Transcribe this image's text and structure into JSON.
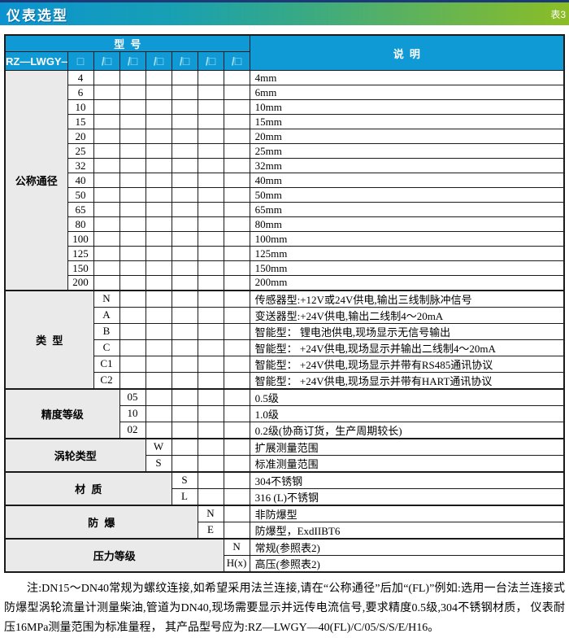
{
  "banner": {
    "title": "仪表选型",
    "badge": "表3"
  },
  "colors": {
    "banner_gradient_left": "#0b93d1",
    "banner_gradient_right": "#8cbd25",
    "topline": "#1c3a77",
    "table_header_blue": "#0f99d5",
    "slot_glyph": "#a8e0f6",
    "label_cell_bg": "#eaeaea",
    "border": "#1a1a1a"
  },
  "table": {
    "header": {
      "model_label": "型  号",
      "desc_label": "说  明",
      "prefix": "RZ—LWGY—",
      "code_slots": [
        "□",
        "/□",
        "/□",
        "/□",
        "/□",
        "/□",
        "/□"
      ]
    },
    "sections": [
      {
        "label": "公称通径",
        "col": 1,
        "rows": [
          {
            "code": "4",
            "desc": "4mm"
          },
          {
            "code": "6",
            "desc": "6mm"
          },
          {
            "code": "10",
            "desc": "10mm"
          },
          {
            "code": "15",
            "desc": "15mm"
          },
          {
            "code": "20",
            "desc": "20mm"
          },
          {
            "code": "25",
            "desc": "25mm"
          },
          {
            "code": "32",
            "desc": "32mm"
          },
          {
            "code": "40",
            "desc": "40mm"
          },
          {
            "code": "50",
            "desc": "50mm"
          },
          {
            "code": "65",
            "desc": "65mm"
          },
          {
            "code": "80",
            "desc": "80mm"
          },
          {
            "code": "100",
            "desc": "100mm"
          },
          {
            "code": "125",
            "desc": "125mm"
          },
          {
            "code": "150",
            "desc": "150mm"
          },
          {
            "code": "200",
            "desc": "200mm"
          }
        ]
      },
      {
        "label": "类  型",
        "col": 2,
        "rows": [
          {
            "code": "N",
            "desc": "传感器型:+12V或24V供电,输出三线制脉冲信号"
          },
          {
            "code": "A",
            "desc": "变送器型:+24V供电,输出二线制4～20mA"
          },
          {
            "code": "B",
            "desc": "智能型： 锂电池供电,现场显示无信号输出"
          },
          {
            "code": "C",
            "desc": "智能型： +24V供电,现场显示并输出二线制4～20mA"
          },
          {
            "code": "C1",
            "desc": "智能型： +24V供电,现场显示并带有RS485通讯协议"
          },
          {
            "code": "C2",
            "desc": "智能型： +24V供电,现场显示并带有HART通讯协议"
          }
        ]
      },
      {
        "label": "精度等级",
        "col": 3,
        "rows": [
          {
            "code": "05",
            "desc": "0.5级"
          },
          {
            "code": "10",
            "desc": "1.0级"
          },
          {
            "code": "02",
            "desc": "0.2级(协商订货，生产周期较长)"
          }
        ]
      },
      {
        "label": "涡轮类型",
        "col": 4,
        "rows": [
          {
            "code": "W",
            "desc": "扩展测量范围"
          },
          {
            "code": "S",
            "desc": "标准测量范围"
          }
        ]
      },
      {
        "label": "材  质",
        "col": 5,
        "rows": [
          {
            "code": "S",
            "desc": "304不锈钢"
          },
          {
            "code": "L",
            "desc": "316 (L)不锈钢"
          }
        ]
      },
      {
        "label": "防  爆",
        "col": 6,
        "rows": [
          {
            "code": "N",
            "desc": "非防爆型"
          },
          {
            "code": "E",
            "desc": "防爆型，ExdIIBT6"
          }
        ]
      },
      {
        "label": "压力等级",
        "col": 7,
        "rows": [
          {
            "code": "N",
            "desc": "常规(参照表2)"
          },
          {
            "code": "H(x)",
            "desc": "高压(参照表2)"
          }
        ]
      }
    ]
  },
  "note": {
    "text": "注:DN15～DN40常规为螺纹连接,如希望采用法兰连接,请在“公称通径”后加“(FL)”例如:选用一台法兰连接式防爆型涡轮流量计测量柴油,管道为DN40,现场需要显示并远传电流信号,要求精度0.5级,304不锈钢材质， 仪表耐压16MPa测量范围为标准量程， 其产品型号应为:RZ—LWGY—40(FL)/C/05/S/S/E/H16。"
  }
}
